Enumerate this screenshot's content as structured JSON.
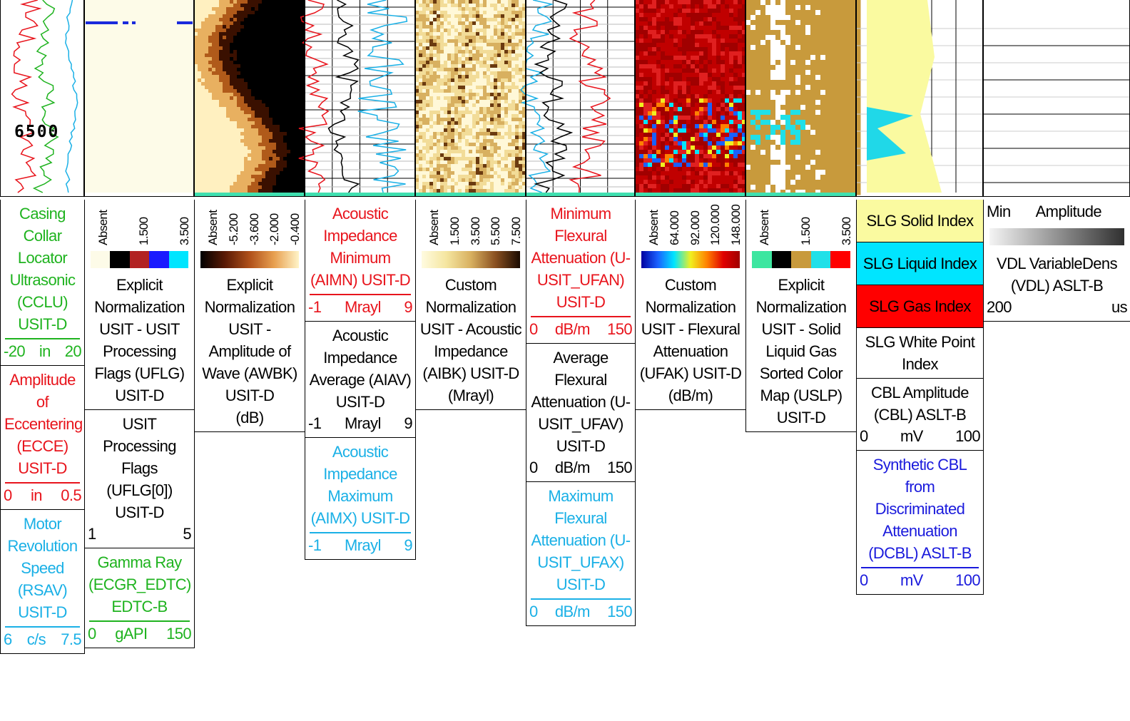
{
  "depth_label": "6500",
  "tracks": [
    {
      "blocks": [
        {
          "texts": [
            "Casing Collar Locator Ultrasonic (CCLU) USIT-D"
          ],
          "color": "#1fb31f",
          "scale": [
            "-20",
            "in",
            "20"
          ]
        },
        {
          "texts": [
            "Amplitude of Eccentering (ECCE) USIT-D"
          ],
          "color": "#e8141c",
          "scale": [
            "0",
            "in",
            "0.5"
          ]
        },
        {
          "texts": [
            "Motor Revolution Speed (RSAV) USIT-D"
          ],
          "color": "#1ab0e6",
          "scale": [
            "6",
            "c/s",
            "7.5"
          ]
        }
      ]
    },
    {
      "legend": {
        "labels": [
          "Absent",
          "1.500",
          "3.500"
        ],
        "colors": [
          "#fdfbe8",
          "#000000",
          "#b22222",
          "#1a1aff",
          "#00e5ff"
        ],
        "gradient": false
      },
      "blocks": [
        {
          "texts": [
            "Explicit Normalization",
            "USIT - USIT Processing Flags (UFLG) USIT-D"
          ],
          "color": "#000000"
        },
        {
          "texts": [
            "USIT Processing Flags (UFLG[0]) USIT-D"
          ],
          "color": "#000000",
          "scale": [
            "1",
            "5"
          ]
        },
        {
          "texts": [
            "Gamma Ray (ECGR_EDTC) EDTC-B"
          ],
          "color": "#1fb31f",
          "scale": [
            "0",
            "gAPI",
            "150"
          ]
        }
      ]
    },
    {
      "legend": {
        "labels": [
          "Absent",
          "-5.200",
          "-3.600",
          "-2.000",
          "-0.400"
        ],
        "colors": [
          "#000000",
          "#5a1a05",
          "#b0501a",
          "#e8a050",
          "#fff4c8"
        ],
        "gradient": true
      },
      "blocks": [
        {
          "texts": [
            "Explicit Normalization",
            "USIT - Amplitude of Wave (AWBK) USIT-D",
            "(dB)"
          ],
          "color": "#000000"
        }
      ]
    },
    {
      "blocks": [
        {
          "texts": [
            "Acoustic Impedance Minimum (AIMN) USIT-D"
          ],
          "color": "#e8141c",
          "scale": [
            "-1",
            "Mrayl",
            "9"
          ]
        },
        {
          "texts": [
            "Acoustic Impedance Average (AIAV) USIT-D"
          ],
          "color": "#000000",
          "scale": [
            "-1",
            "Mrayl",
            "9"
          ]
        },
        {
          "texts": [
            "Acoustic Impedance Maximum (AIMX) USIT-D"
          ],
          "color": "#1ab0e6",
          "scale": [
            "-1",
            "Mrayl",
            "9"
          ]
        }
      ]
    },
    {
      "legend": {
        "labels": [
          "Absent",
          "1.500",
          "3.500",
          "5.500",
          "7.500"
        ],
        "colors": [
          "#fffbe0",
          "#f5e6a0",
          "#d8b060",
          "#8a5020",
          "#1a0a00"
        ],
        "gradient": true
      },
      "blocks": [
        {
          "texts": [
            "Custom Normalization",
            "USIT - Acoustic Impedance (AIBK) USIT-D",
            "(Mrayl)"
          ],
          "color": "#000000"
        }
      ]
    },
    {
      "blocks": [
        {
          "texts": [
            "Minimum Flexural Attenuation (U-USIT_UFAN) USIT-D"
          ],
          "color": "#e8141c",
          "scale": [
            "0",
            "dB/m",
            "150"
          ]
        },
        {
          "texts": [
            "Average Flexural Attenuation (U-USIT_UFAV) USIT-D"
          ],
          "color": "#000000",
          "scale": [
            "0",
            "dB/m",
            "150"
          ]
        },
        {
          "texts": [
            "Maximum Flexural Attenuation (U-USIT_UFAX) USIT-D"
          ],
          "color": "#1ab0e6",
          "scale": [
            "0",
            "dB/m",
            "150"
          ]
        }
      ]
    },
    {
      "legend": {
        "labels": [
          "Absent",
          "64.000",
          "92.000",
          "120.000",
          "148.000"
        ],
        "colors": [
          "#0000a0",
          "#1a60ff",
          "#00e5ff",
          "#f0f020",
          "#ff8000",
          "#e00000",
          "#a00000"
        ],
        "gradient": true
      },
      "blocks": [
        {
          "texts": [
            "Custom Normalization",
            "USIT - Flexural Attenuation (UFAK) USIT-D",
            "(dB/m)"
          ],
          "color": "#000000"
        }
      ]
    },
    {
      "legend": {
        "labels": [
          "Absent",
          "1.500",
          "3.500"
        ],
        "colors": [
          "#3de6a0",
          "#000000",
          "#c89a3c",
          "#20e0e8",
          "#ff0000"
        ],
        "gradient": false
      },
      "blocks": [
        {
          "texts": [
            "Explicit Normalization",
            "USIT - Solid Liquid Gas Sorted Color Map (USLP) USIT-D"
          ],
          "color": "#000000"
        }
      ]
    },
    {
      "blocks": [
        {
          "texts": [
            "SLG Solid Index"
          ],
          "color": "#000000",
          "background": "#fafaa0"
        },
        {
          "texts": [
            "SLG Liquid Index"
          ],
          "color": "#000000",
          "background": "#00e5ff"
        },
        {
          "texts": [
            "SLG Gas Index"
          ],
          "color": "#000000",
          "background": "#ff0000"
        },
        {
          "texts": [
            "SLG White Point Index"
          ],
          "color": "#000000"
        },
        {
          "texts": [
            "CBL Amplitude (CBL) ASLT-B"
          ],
          "color": "#000000",
          "scale": [
            "0",
            "mV",
            "100"
          ]
        },
        {
          "texts": [
            "Synthetic CBL from Discriminated Attenuation (DCBL) ASLT-B"
          ],
          "color": "#1a1adc",
          "scale": [
            "0",
            "mV",
            "100"
          ]
        }
      ]
    },
    {
      "top": [
        "Min",
        "Amplitude"
      ],
      "legend": {
        "colors": [
          "#f4f4f4",
          "#303030"
        ],
        "gradient": true
      },
      "blocks": [
        {
          "texts": [
            "VDL VariableDens",
            "(VDL) ASLT-B"
          ],
          "color": "#000000",
          "scale": [
            "200",
            "us"
          ]
        }
      ]
    }
  ]
}
